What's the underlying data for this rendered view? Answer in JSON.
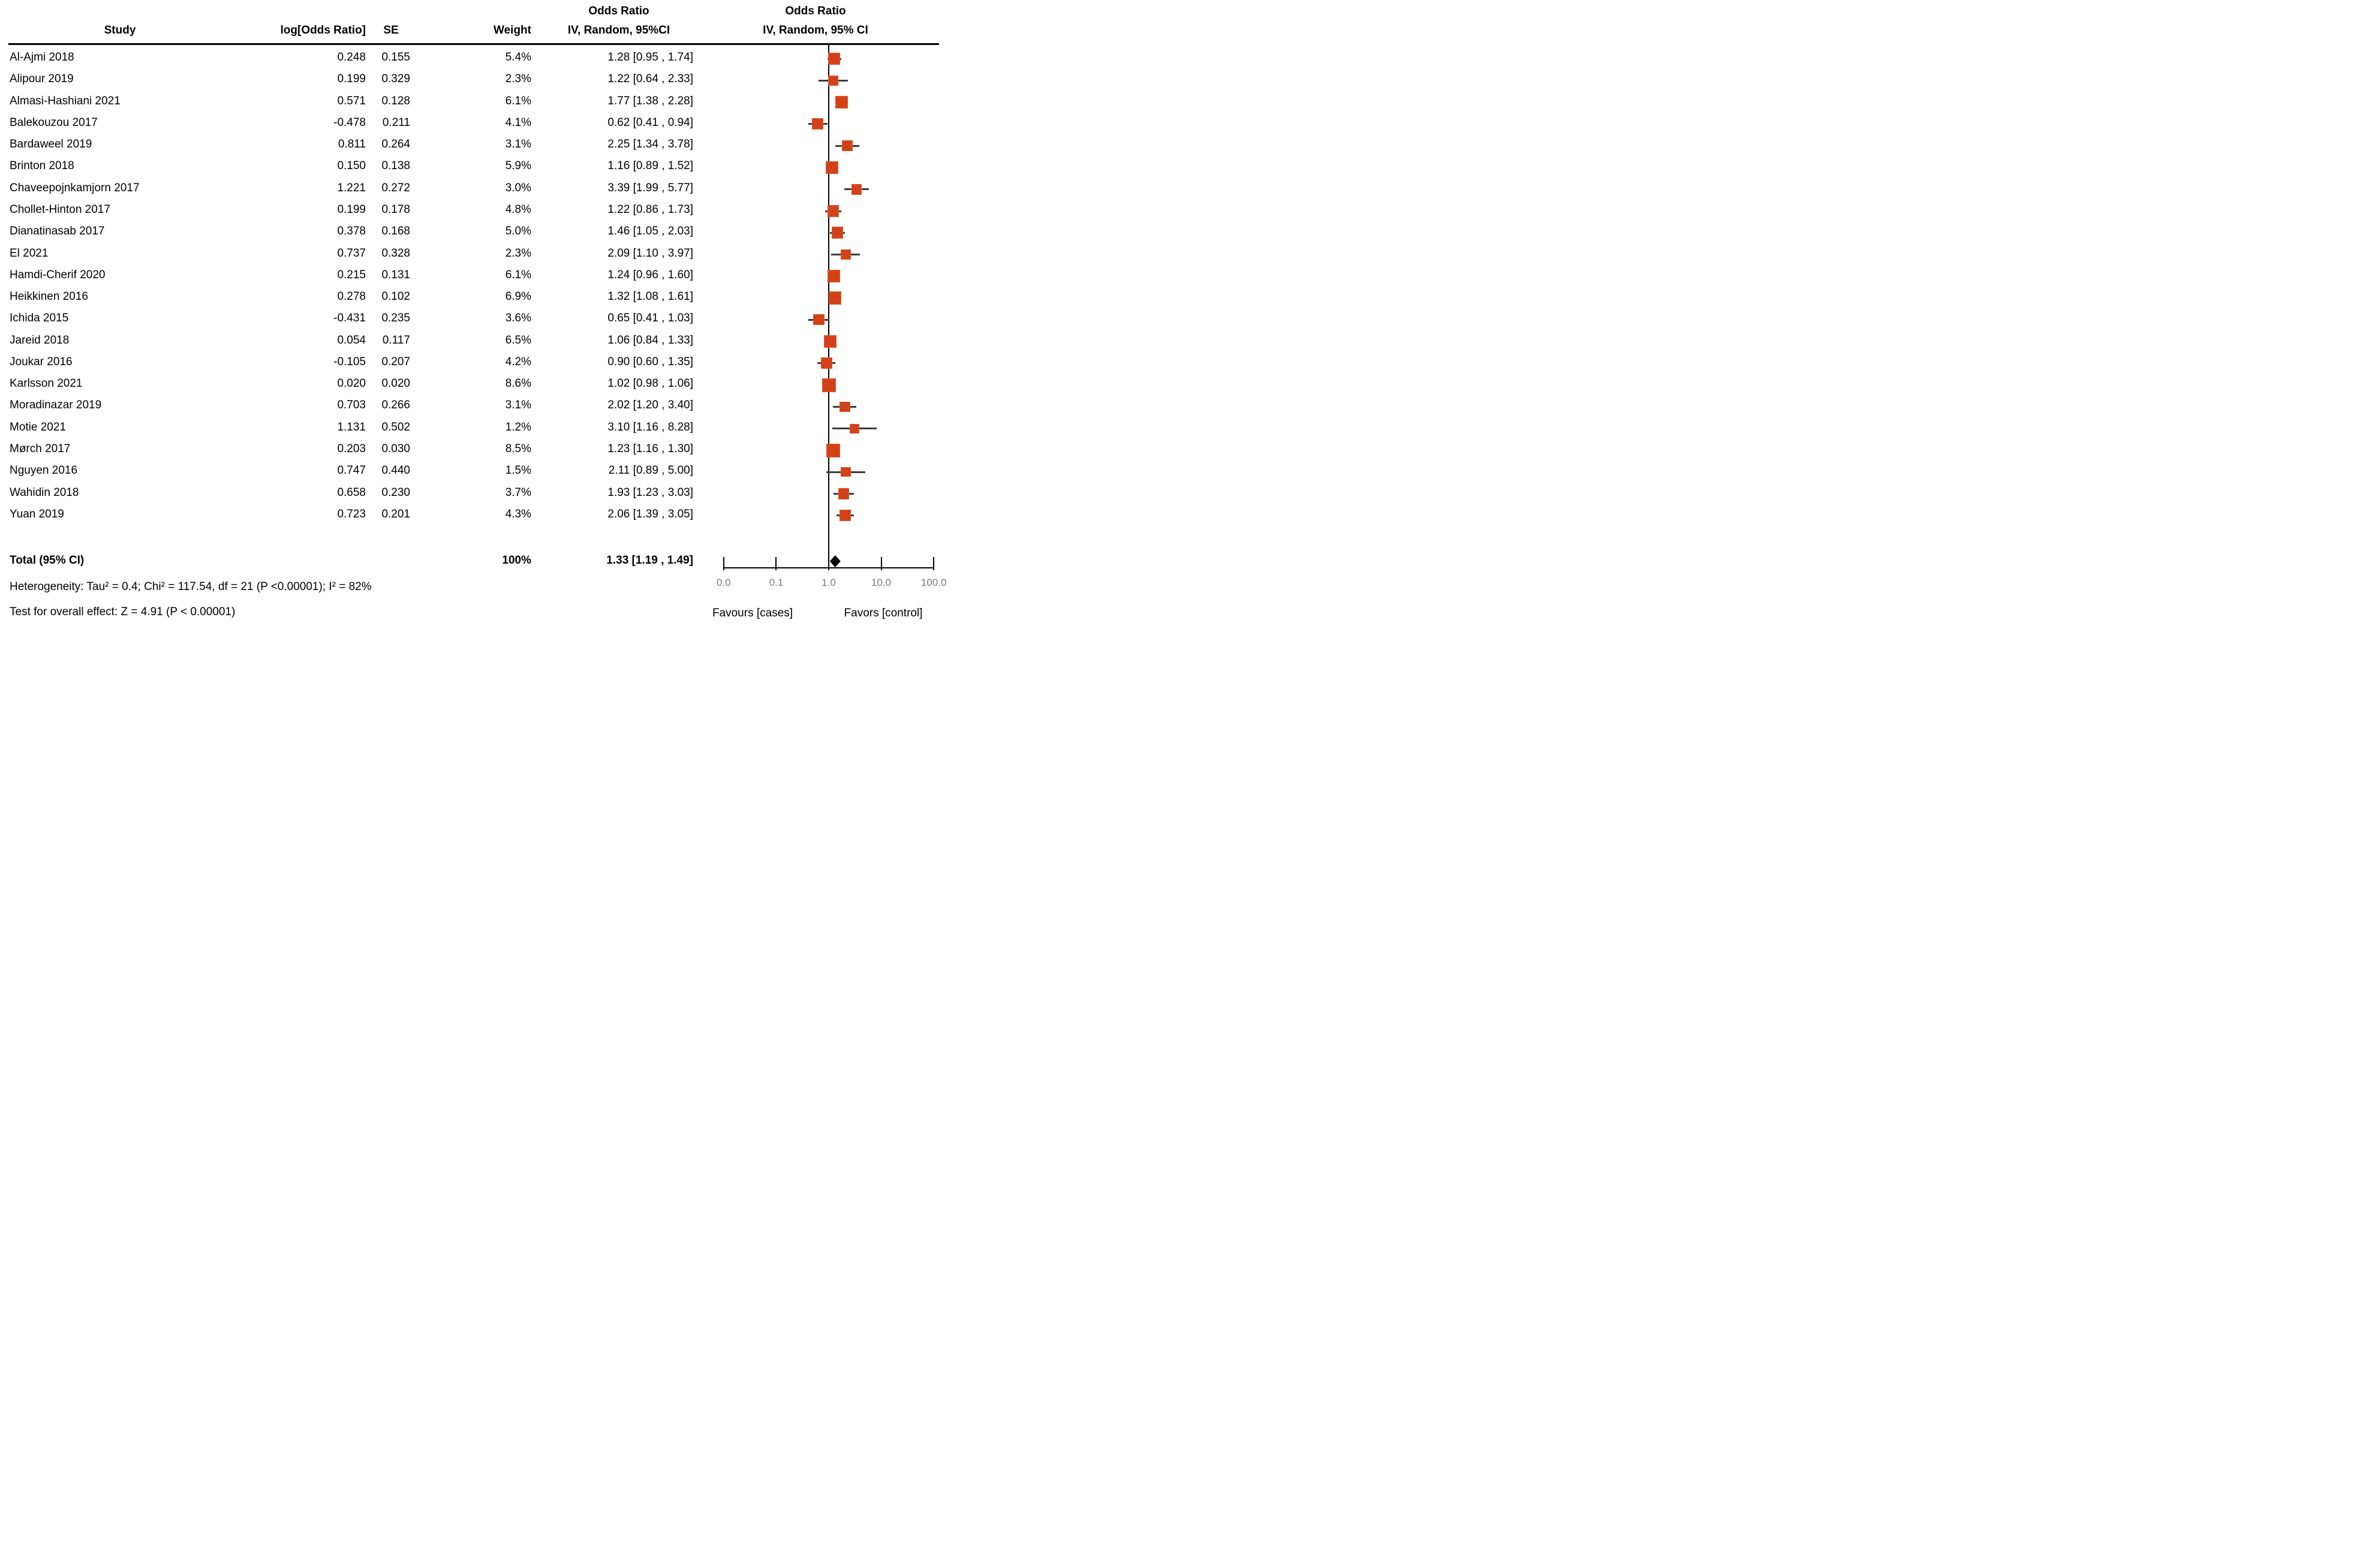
{
  "chart_data": {
    "type": "forest",
    "effect_measure": "Odds Ratio",
    "model": "IV, Random, 95% CI",
    "columns": {
      "study": "Study",
      "log_or": "log[Odds Ratio]",
      "se": "SE",
      "weight": "Weight",
      "or_ci_line1": "Odds Ratio",
      "or_ci_line2": "IV, Random, 95%CI",
      "plot_line1": "Odds Ratio",
      "plot_line2": "IV, Random, 95% CI"
    },
    "studies": [
      {
        "name": "Al-Ajmi 2018",
        "log_or": "0.248",
        "se": "0.155",
        "weight": "5.4%",
        "ci_text": "1.28 [0.95 , 1.74]",
        "or": 1.28,
        "lo": 0.95,
        "hi": 1.74,
        "weight_pct": 5.4
      },
      {
        "name": "Alipour 2019",
        "log_or": "0.199",
        "se": "0.329",
        "weight": "2.3%",
        "ci_text": "1.22 [0.64 , 2.33]",
        "or": 1.22,
        "lo": 0.64,
        "hi": 2.33,
        "weight_pct": 2.3
      },
      {
        "name": "Almasi-Hashiani 2021",
        "log_or": "0.571",
        "se": "0.128",
        "weight": "6.1%",
        "ci_text": "1.77 [1.38 , 2.28]",
        "or": 1.77,
        "lo": 1.38,
        "hi": 2.28,
        "weight_pct": 6.1
      },
      {
        "name": "Balekouzou 2017",
        "log_or": "-0.478",
        "se": "0.211",
        "weight": "4.1%",
        "ci_text": "0.62 [0.41 , 0.94]",
        "or": 0.62,
        "lo": 0.41,
        "hi": 0.94,
        "weight_pct": 4.1
      },
      {
        "name": "Bardaweel 2019",
        "log_or": "0.811",
        "se": "0.264",
        "weight": "3.1%",
        "ci_text": "2.25 [1.34 , 3.78]",
        "or": 2.25,
        "lo": 1.34,
        "hi": 3.78,
        "weight_pct": 3.1
      },
      {
        "name": "Brinton 2018",
        "log_or": "0.150",
        "se": "0.138",
        "weight": "5.9%",
        "ci_text": "1.16 [0.89 , 1.52]",
        "or": 1.16,
        "lo": 0.89,
        "hi": 1.52,
        "weight_pct": 5.9
      },
      {
        "name": "Chaveepojnkamjorn 2017",
        "log_or": "1.221",
        "se": "0.272",
        "weight": "3.0%",
        "ci_text": "3.39 [1.99 , 5.77]",
        "or": 3.39,
        "lo": 1.99,
        "hi": 5.77,
        "weight_pct": 3.0
      },
      {
        "name": "Chollet-Hinton 2017",
        "log_or": "0.199",
        "se": "0.178",
        "weight": "4.8%",
        "ci_text": "1.22 [0.86 , 1.73]",
        "or": 1.22,
        "lo": 0.86,
        "hi": 1.73,
        "weight_pct": 4.8
      },
      {
        "name": "Dianatinasab 2017",
        "log_or": "0.378",
        "se": "0.168",
        "weight": "5.0%",
        "ci_text": "1.46 [1.05 , 2.03]",
        "or": 1.46,
        "lo": 1.05,
        "hi": 2.03,
        "weight_pct": 5.0
      },
      {
        "name": "El 2021",
        "log_or": "0.737",
        "se": "0.328",
        "weight": "2.3%",
        "ci_text": "2.09 [1.10 , 3.97]",
        "or": 2.09,
        "lo": 1.1,
        "hi": 3.97,
        "weight_pct": 2.3
      },
      {
        "name": "Hamdi-Cherif 2020",
        "log_or": "0.215",
        "se": "0.131",
        "weight": "6.1%",
        "ci_text": "1.24 [0.96 , 1.60]",
        "or": 1.24,
        "lo": 0.96,
        "hi": 1.6,
        "weight_pct": 6.1
      },
      {
        "name": "Heikkinen 2016",
        "log_or": "0.278",
        "se": "0.102",
        "weight": "6.9%",
        "ci_text": "1.32 [1.08 , 1.61]",
        "or": 1.32,
        "lo": 1.08,
        "hi": 1.61,
        "weight_pct": 6.9
      },
      {
        "name": "Ichida 2015",
        "log_or": "-0.431",
        "se": "0.235",
        "weight": "3.6%",
        "ci_text": "0.65 [0.41 , 1.03]",
        "or": 0.65,
        "lo": 0.41,
        "hi": 1.03,
        "weight_pct": 3.6
      },
      {
        "name": "Jareid 2018",
        "log_or": "0.054",
        "se": "0.117",
        "weight": "6.5%",
        "ci_text": "1.06 [0.84 , 1.33]",
        "or": 1.06,
        "lo": 0.84,
        "hi": 1.33,
        "weight_pct": 6.5
      },
      {
        "name": "Joukar 2016",
        "log_or": "-0.105",
        "se": "0.207",
        "weight": "4.2%",
        "ci_text": "0.90 [0.60 , 1.35]",
        "or": 0.9,
        "lo": 0.6,
        "hi": 1.35,
        "weight_pct": 4.2
      },
      {
        "name": "Karlsson 2021",
        "log_or": "0.020",
        "se": "0.020",
        "weight": "8.6%",
        "ci_text": "1.02 [0.98 , 1.06]",
        "or": 1.02,
        "lo": 0.98,
        "hi": 1.06,
        "weight_pct": 8.6
      },
      {
        "name": "Moradinazar 2019",
        "log_or": "0.703",
        "se": "0.266",
        "weight": "3.1%",
        "ci_text": "2.02 [1.20 , 3.40]",
        "or": 2.02,
        "lo": 1.2,
        "hi": 3.4,
        "weight_pct": 3.1
      },
      {
        "name": "Motie 2021",
        "log_or": "1.131",
        "se": "0.502",
        "weight": "1.2%",
        "ci_text": "3.10 [1.16 , 8.28]",
        "or": 3.1,
        "lo": 1.16,
        "hi": 8.28,
        "weight_pct": 1.2
      },
      {
        "name": "Mørch 2017",
        "log_or": "0.203",
        "se": "0.030",
        "weight": "8.5%",
        "ci_text": "1.23 [1.16 , 1.30]",
        "or": 1.23,
        "lo": 1.16,
        "hi": 1.3,
        "weight_pct": 8.5
      },
      {
        "name": "Nguyen 2016",
        "log_or": "0.747",
        "se": "0.440",
        "weight": "1.5%",
        "ci_text": "2.11 [0.89 , 5.00]",
        "or": 2.11,
        "lo": 0.89,
        "hi": 5.0,
        "weight_pct": 1.5
      },
      {
        "name": "Wahidin 2018",
        "log_or": "0.658",
        "se": "0.230",
        "weight": "3.7%",
        "ci_text": "1.93 [1.23 , 3.03]",
        "or": 1.93,
        "lo": 1.23,
        "hi": 3.03,
        "weight_pct": 3.7
      },
      {
        "name": "Yuan 2019",
        "log_or": "0.723",
        "se": "0.201",
        "weight": "4.3%",
        "ci_text": "2.06 [1.39 , 3.05]",
        "or": 2.06,
        "lo": 1.39,
        "hi": 3.05,
        "weight_pct": 4.3
      }
    ],
    "total": {
      "label": "Total (95% CI)",
      "weight": "100%",
      "ci_text": "1.33 [1.19 , 1.49]",
      "or": 1.33,
      "lo": 1.19,
      "hi": 1.49
    },
    "heterogeneity": "Heterogeneity: Tau² = 0.4; Chi² = 117.54, df = 21 (P <0.00001); I² = 82%",
    "overall_effect": "Test for overall effect: Z = 4.91 (P < 0.00001)",
    "axis": {
      "scale": "log10",
      "range": [
        0.01,
        100
      ],
      "ticks": [
        {
          "v": 0.01,
          "label": "0.0"
        },
        {
          "v": 0.1,
          "label": "0.1"
        },
        {
          "v": 1,
          "label": "1.0"
        },
        {
          "v": 10,
          "label": "10.0"
        },
        {
          "v": 100,
          "label": "100.0"
        }
      ],
      "left_label": "Favours [cases]",
      "right_label": "Favors [control]"
    },
    "colors": {
      "marker": "#d2411a",
      "marker_edge": "#e05c28",
      "ci_line": "#3c3c3c",
      "axis": "#000000",
      "tick_label": "#7a7a7a",
      "diamond": "#000000"
    }
  }
}
